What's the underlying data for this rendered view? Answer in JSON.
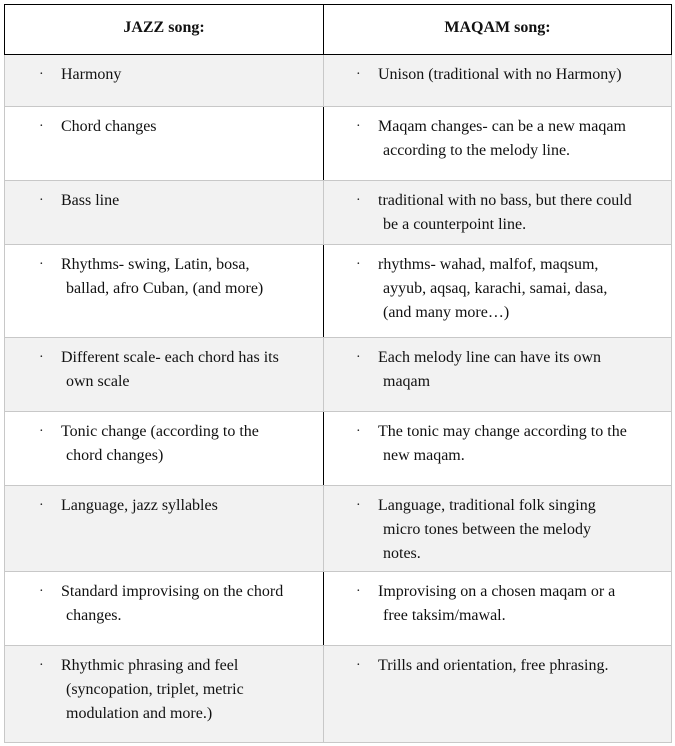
{
  "headers": [
    "JAZZ song:",
    "MAQAM song:"
  ],
  "rows": [
    {
      "jazz": [
        "Harmony"
      ],
      "maqam": [
        "Unison (traditional with no Harmony)"
      ]
    },
    {
      "jazz": [
        "Chord changes"
      ],
      "maqam": [
        "Maqam changes- can be a new maqam",
        "according to the melody line."
      ]
    },
    {
      "jazz": [
        "Bass line"
      ],
      "maqam": [
        "traditional with no bass, but there could",
        "be a counterpoint line."
      ]
    },
    {
      "jazz": [
        "Rhythms- swing, Latin, bosa,",
        "ballad, afro Cuban, (and more)"
      ],
      "maqam": [
        "rhythms- wahad, malfof, maqsum,",
        "ayyub, aqsaq, karachi, samai, dasa,",
        "(and many more…)"
      ]
    },
    {
      "jazz": [
        "Different scale- each chord has its",
        "own scale"
      ],
      "maqam": [
        "Each melody line can have its own",
        "maqam"
      ]
    },
    {
      "jazz": [
        "Tonic change (according to the",
        "chord changes)"
      ],
      "maqam": [
        "The tonic may change according to the",
        "new maqam."
      ]
    },
    {
      "jazz": [
        "Language, jazz syllables"
      ],
      "maqam": [
        "Language, traditional folk singing",
        "micro tones between the melody",
        "notes."
      ]
    },
    {
      "jazz": [
        "Standard improvising on the chord",
        "changes."
      ],
      "maqam": [
        "Improvising on a chosen maqam or a",
        "free taksim/mawal."
      ]
    },
    {
      "jazz": [
        "Rhythmic phrasing and feel",
        "(syncopation, triplet, metric",
        "modulation and more.)"
      ],
      "maqam": [
        "Trills and orientation, free phrasing."
      ]
    }
  ],
  "bullet": "·"
}
